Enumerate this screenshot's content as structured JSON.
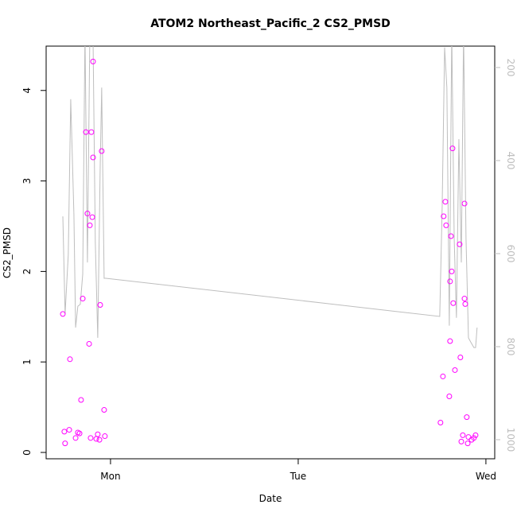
{
  "chart_data": {
    "type": "line-scatter",
    "title": "ATOM2 Northeast_Pacific_2 CS2_PMSD",
    "x_label": "Date",
    "y_label": "CS2_PMSD",
    "xlim": [
      -0.343,
      2.047
    ],
    "xticks": [
      {
        "value": 0,
        "label": "Mon"
      },
      {
        "value": 1,
        "label": "Tue"
      },
      {
        "value": 2,
        "label": "Wed"
      }
    ],
    "ylim": [
      -0.07,
      4.49
    ],
    "yticks": [
      0,
      1,
      2,
      3,
      4
    ],
    "y2lim": [
      1041,
      154
    ],
    "y2ticks": [
      200,
      400,
      600,
      800,
      1000
    ],
    "series": [
      {
        "type": "line",
        "axis": "y2",
        "color": "#bebebe",
        "x": [
          -0.254,
          -0.242,
          -0.225,
          -0.212,
          -0.195,
          -0.186,
          -0.174,
          -0.161,
          -0.148,
          -0.136,
          -0.123,
          -0.11,
          -0.093,
          -0.081,
          -0.068,
          -0.055,
          -0.047,
          -0.034,
          -0.025,
          1.754,
          1.767,
          1.78,
          1.792,
          1.805,
          1.818,
          1.831,
          1.843,
          1.856,
          1.869,
          1.881,
          1.894,
          1.907,
          1.919,
          1.936,
          1.945,
          1.953
        ],
        "values": [
          520,
          730,
          602,
          268,
          516,
          759,
          713,
          709,
          644,
          123,
          619,
          123,
          140,
          576,
          781,
          414,
          243,
          653,
          653,
          735,
          499,
          157,
          243,
          755,
          123,
          567,
          738,
          354,
          619,
          123,
          567,
          781,
          790,
          802,
          802,
          759
        ]
      },
      {
        "type": "scatter",
        "color": "#ff00ff",
        "x": [
          -0.254,
          -0.246,
          -0.242,
          -0.22,
          -0.216,
          -0.186,
          -0.174,
          -0.165,
          -0.157,
          -0.148,
          -0.131,
          -0.123,
          -0.114,
          -0.11,
          -0.106,
          -0.102,
          -0.097,
          -0.093,
          -0.093,
          -0.076,
          -0.068,
          -0.059,
          -0.055,
          -0.047,
          -0.034,
          -0.03,
          1.758,
          1.771,
          1.775,
          1.784,
          1.788,
          1.805,
          1.809,
          1.809,
          1.814,
          1.818,
          1.822,
          1.826,
          1.835,
          1.86,
          1.864,
          1.869,
          1.877,
          1.886,
          1.886,
          1.89,
          1.898,
          1.903,
          1.907,
          1.924,
          1.936,
          1.945
        ],
        "values": [
          1.53,
          0.23,
          0.1,
          0.25,
          1.03,
          0.16,
          0.22,
          0.21,
          0.58,
          1.7,
          3.54,
          2.64,
          1.2,
          2.51,
          0.16,
          3.54,
          2.6,
          3.26,
          4.32,
          0.15,
          0.2,
          0.14,
          1.63,
          3.33,
          0.47,
          0.18,
          0.33,
          0.84,
          2.61,
          2.77,
          2.51,
          0.62,
          1.23,
          1.89,
          2.39,
          2.0,
          3.36,
          1.65,
          0.91,
          2.3,
          1.05,
          0.12,
          0.19,
          2.75,
          1.7,
          1.64,
          0.39,
          0.1,
          0.17,
          0.14,
          0.16,
          0.19
        ]
      }
    ]
  }
}
